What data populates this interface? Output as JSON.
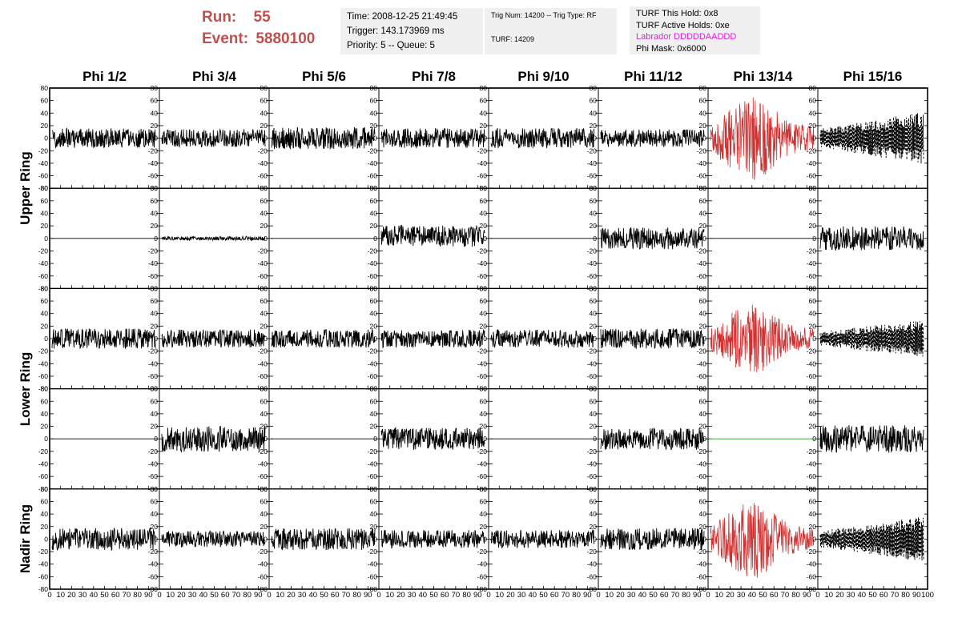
{
  "header": {
    "run_label": "Run:",
    "run_value": "55",
    "event_label": "Event:",
    "event_value": "5880100"
  },
  "info_time": {
    "time": "Time: 2008-12-25 21:49:45",
    "trigger": "Trigger: 143.173969 ms",
    "priority": "Priority: 5 -- Queue: 5"
  },
  "info_trig": {
    "trig": "Trig Num: 14200 -- Trig Type: RF",
    "turf": "TURF: 14209"
  },
  "info_turf": {
    "this_hold": "TURF This Hold: 0x8",
    "active_holds": "TURF Active Holds: 0xe",
    "labrador": "Labrador DDDDDAADDD",
    "phi_mask": "Phi Mask: 0x6000"
  },
  "colors": {
    "trace": "#000000",
    "triggered": "#d03030",
    "flat_green": "#22a022",
    "text_red": "#c0504d",
    "labrador": "#e020e0",
    "info_bg": "#f0f0f0"
  },
  "chart_data": {
    "type": "line",
    "columns": [
      "Phi 1/2",
      "Phi 3/4",
      "Phi 5/6",
      "Phi 7/8",
      "Phi 9/10",
      "Phi 11/12",
      "Phi 13/14",
      "Phi 15/16"
    ],
    "ring_labels": [
      "Upper Ring",
      "Lower Ring",
      "Nadir Ring"
    ],
    "ylim": [
      -80,
      80
    ],
    "yticks": [
      -80,
      -60,
      -40,
      -20,
      0,
      20,
      40,
      60,
      80
    ],
    "xlim": [
      0,
      100
    ],
    "xticks": [
      0,
      10,
      20,
      30,
      40,
      50,
      60,
      70,
      80,
      90,
      100
    ],
    "rows": [
      {
        "cells": [
          {
            "amp": 10,
            "style": "normal"
          },
          {
            "amp": 9,
            "style": "normal"
          },
          {
            "amp": 11,
            "style": "normal"
          },
          {
            "amp": 10,
            "style": "normal"
          },
          {
            "amp": 10,
            "style": "normal"
          },
          {
            "amp": 9,
            "style": "normal"
          },
          {
            "amp": 24,
            "style": "triggered"
          },
          {
            "amp": 30,
            "style": "dashed"
          }
        ]
      },
      {
        "cells": [
          {
            "amp": 0,
            "style": "flat"
          },
          {
            "amp": 2,
            "style": "normal"
          },
          {
            "amp": 0,
            "style": "flat"
          },
          {
            "amp": 11,
            "style": "normal",
            "offset": 4
          },
          {
            "amp": 0,
            "style": "flat"
          },
          {
            "amp": 11,
            "style": "normal"
          },
          {
            "amp": 0,
            "style": "flat"
          },
          {
            "amp": 12,
            "style": "normal"
          }
        ]
      },
      {
        "cells": [
          {
            "amp": 10,
            "style": "normal"
          },
          {
            "amp": 9,
            "style": "normal"
          },
          {
            "amp": 9,
            "style": "normal"
          },
          {
            "amp": 9,
            "style": "normal"
          },
          {
            "amp": 9,
            "style": "normal"
          },
          {
            "amp": 10,
            "style": "normal"
          },
          {
            "amp": 20,
            "style": "triggered"
          },
          {
            "amp": 22,
            "style": "dashed"
          }
        ]
      },
      {
        "cells": [
          {
            "amp": 0,
            "style": "flat"
          },
          {
            "amp": 13,
            "style": "normal"
          },
          {
            "amp": 0,
            "style": "flat"
          },
          {
            "amp": 11,
            "style": "normal"
          },
          {
            "amp": 0,
            "style": "flat"
          },
          {
            "amp": 11,
            "style": "normal"
          },
          {
            "amp": 0,
            "style": "flat_green"
          },
          {
            "amp": 14,
            "style": "normal"
          }
        ]
      },
      {
        "cells": [
          {
            "amp": 11,
            "style": "normal"
          },
          {
            "amp": 8,
            "style": "normal"
          },
          {
            "amp": 11,
            "style": "normal"
          },
          {
            "amp": 9,
            "style": "normal"
          },
          {
            "amp": 9,
            "style": "normal"
          },
          {
            "amp": 11,
            "style": "normal"
          },
          {
            "amp": 22,
            "style": "triggered"
          },
          {
            "amp": 26,
            "style": "dashed"
          }
        ]
      }
    ]
  }
}
